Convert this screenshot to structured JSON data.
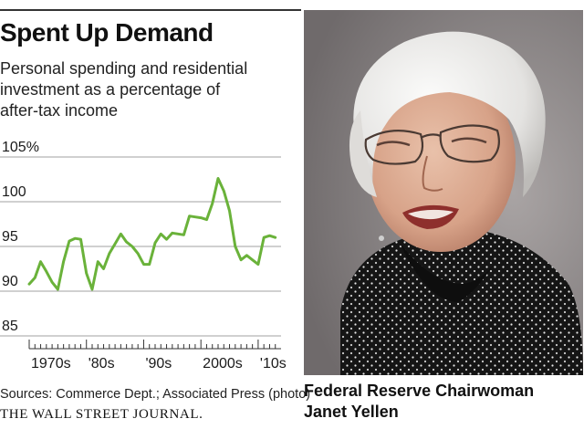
{
  "header": {
    "title": "Spent Up Demand",
    "subtitle_lines": [
      "Personal spending and residential",
      "investment as a percentage of",
      "after-tax income"
    ]
  },
  "footer": {
    "sources": "Sources: Commerce Dept.; Associated Press (photo)",
    "brand": "THE WALL STREET JOURNAL."
  },
  "photo": {
    "caption_lines": [
      "Federal Reserve Chairwoman",
      "Janet Yellen"
    ]
  },
  "colors": {
    "line": "#6ab23a",
    "grid": "#a0a0a0",
    "text": "#1a1a1a"
  },
  "chart_data": {
    "type": "line",
    "title": "Spent Up Demand",
    "subtitle": "Personal spending and residential investment as a percentage of after-tax income",
    "xlabel": "",
    "ylabel": "",
    "xlim": [
      1970,
      2014
    ],
    "ylim": [
      85,
      105
    ],
    "y_ticks": [
      85,
      90,
      95,
      100,
      105
    ],
    "y_tick_labels": [
      "85",
      "90",
      "95",
      "100",
      "105%"
    ],
    "x_tick_labels": [
      {
        "label": "1970s",
        "x": 1970
      },
      {
        "label": "'80s",
        "x": 1980
      },
      {
        "label": "'90s",
        "x": 1990
      },
      {
        "label": "2000s",
        "x": 2000
      },
      {
        "label": "'10s",
        "x": 2010
      }
    ],
    "grid": true,
    "legend": "none",
    "series": [
      {
        "x": [
          1970,
          1971,
          1972,
          1973,
          1974,
          1975,
          1976,
          1977,
          1978,
          1979,
          1980,
          1981,
          1982,
          1983,
          1984,
          1985,
          1986,
          1987,
          1988,
          1989,
          1990,
          1991,
          1992,
          1993,
          1994,
          1995,
          1996,
          1997,
          1998,
          1999,
          2000,
          2001,
          2002,
          2003,
          2004,
          2005,
          2006,
          2007,
          2008,
          2009,
          2010,
          2011,
          2012,
          2013
        ],
        "values": [
          90.8,
          91.5,
          93.3,
          92.2,
          91.0,
          90.2,
          93.3,
          95.6,
          95.9,
          95.8,
          92.0,
          90.2,
          93.3,
          92.5,
          94.2,
          95.3,
          96.4,
          95.5,
          95.0,
          94.2,
          93.0,
          93.0,
          95.4,
          96.4,
          95.8,
          96.5,
          96.4,
          96.3,
          98.4,
          98.3,
          98.2,
          98.0,
          99.8,
          102.6,
          101.2,
          99.0,
          95.0,
          93.5,
          94.0,
          93.5,
          93.0,
          96.0,
          96.2,
          96.0
        ]
      }
    ]
  }
}
